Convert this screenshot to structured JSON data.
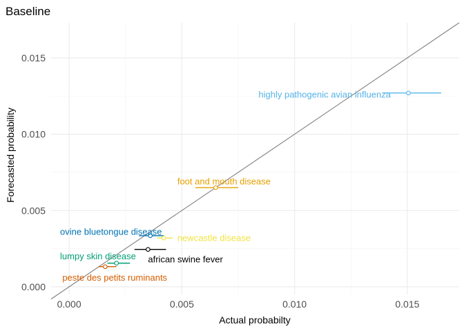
{
  "chart_data": {
    "type": "scatter",
    "title": "Baseline",
    "xlabel": "Actual probabilty",
    "ylabel": "Forecasted probability",
    "xlim": [
      -0.0008,
      0.0173
    ],
    "ylim": [
      -0.0005,
      0.0173
    ],
    "x_ticks": [
      0.0,
      0.005,
      0.01,
      0.015
    ],
    "x_tick_labels": [
      "0.000",
      "0.005",
      "0.010",
      "0.015"
    ],
    "y_ticks": [
      0.0,
      0.005,
      0.01,
      0.015
    ],
    "y_tick_labels": [
      "0.000",
      "0.005",
      "0.010",
      "0.015"
    ],
    "reference_line": {
      "slope": 1,
      "intercept": 0,
      "color": "#808080"
    },
    "grid": true,
    "legend": "none",
    "points": [
      {
        "label": "highly pathogenic avian influenza",
        "x": 0.01505,
        "y": 0.0127,
        "x_low": 0.0139,
        "x_high": 0.0165,
        "color": "#56B4E9",
        "label_x": 0.0084,
        "label_y": 0.0126
      },
      {
        "label": "foot and mouth disease",
        "x": 0.0065,
        "y": 0.0065,
        "x_low": 0.0056,
        "x_high": 0.0075,
        "color": "#E69F00",
        "label_x": 0.0048,
        "label_y": 0.0069
      },
      {
        "label": "ovine bluetongue disease",
        "x": 0.0036,
        "y": 0.00335,
        "x_low": 0.0031,
        "x_high": 0.0042,
        "color": "#0072B2",
        "label_x": -0.0004,
        "label_y": 0.0036
      },
      {
        "label": "newcastle disease",
        "x": 0.0042,
        "y": 0.0032,
        "x_low": 0.0039,
        "x_high": 0.0046,
        "color": "#F0E442",
        "label_x": 0.0048,
        "label_y": 0.0032
      },
      {
        "label": "african swine fever",
        "x": 0.0035,
        "y": 0.00245,
        "x_low": 0.0029,
        "x_high": 0.0043,
        "color": "#000000",
        "label_x": 0.0035,
        "label_y": 0.0018
      },
      {
        "label": "lumpy skin disease",
        "x": 0.0021,
        "y": 0.00155,
        "x_low": 0.0017,
        "x_high": 0.0027,
        "color": "#009E73",
        "label_x": -0.0004,
        "label_y": 0.002
      },
      {
        "label": "peste des petits ruminants",
        "x": 0.0016,
        "y": 0.00132,
        "x_low": 0.0013,
        "x_high": 0.0021,
        "color": "#D55E00",
        "label_x": -0.0003,
        "label_y": 0.0006
      }
    ]
  }
}
